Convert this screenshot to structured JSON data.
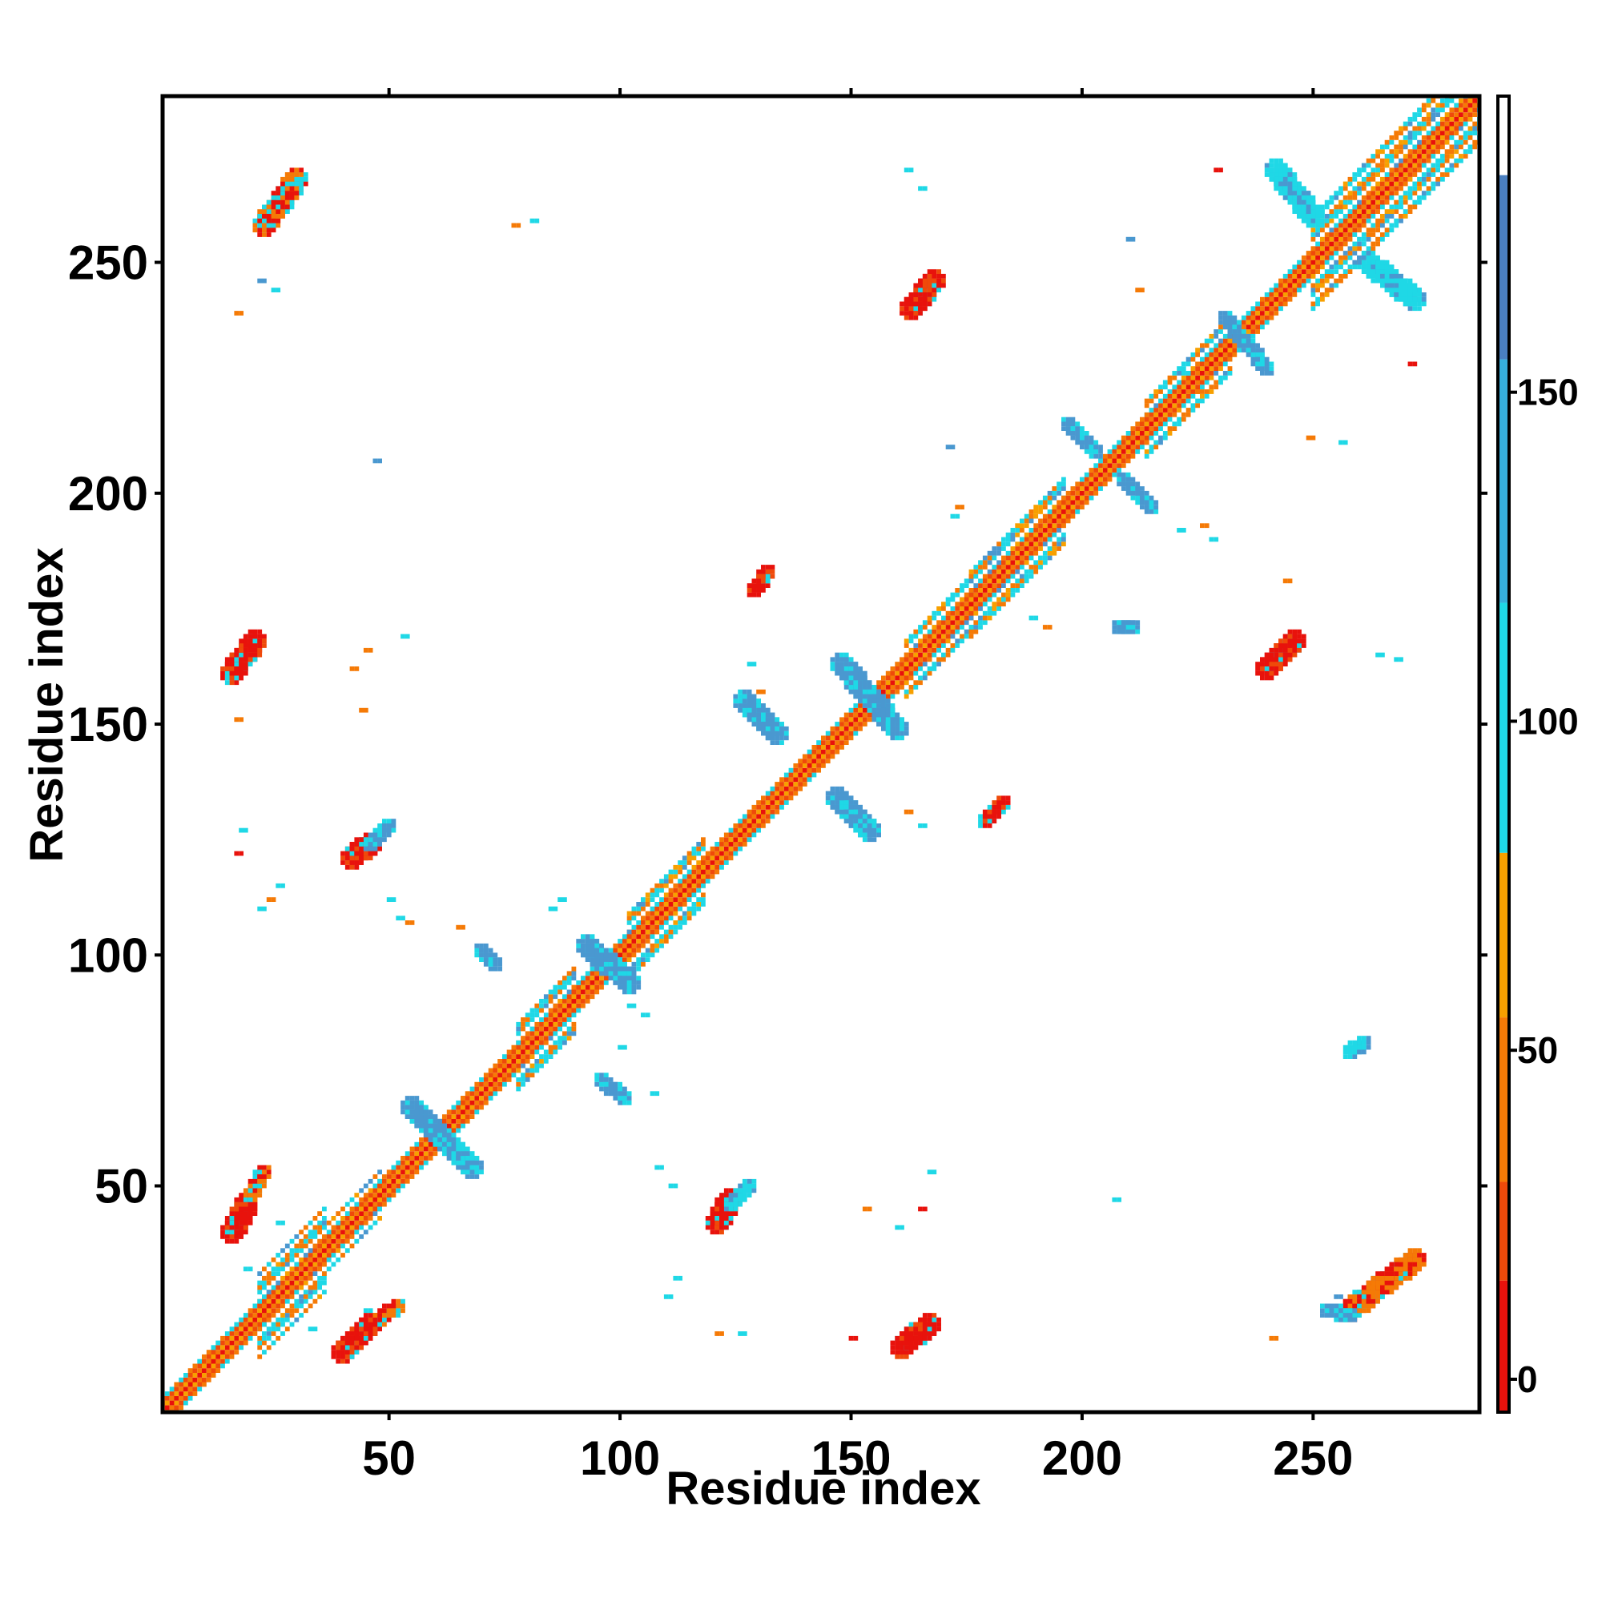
{
  "chart_data": {
    "type": "heatmap",
    "xlabel": "Residue index",
    "ylabel": "Residue index",
    "xlim": [
      1,
      286
    ],
    "ylim": [
      1,
      286
    ],
    "xticks": [
      50,
      100,
      150,
      200,
      250
    ],
    "yticks": [
      50,
      100,
      150,
      200,
      250
    ],
    "grid": false,
    "symmetric": true,
    "colorbar": {
      "range": [
        -5,
        195
      ],
      "ticks": [
        0,
        50,
        100,
        150
      ],
      "bands": [
        {
          "from": -5,
          "to": 15,
          "color": "#e8120c"
        },
        {
          "from": 15,
          "to": 30,
          "color": "#ef4a0a"
        },
        {
          "from": 30,
          "to": 55,
          "color": "#f57a06"
        },
        {
          "from": 55,
          "to": 80,
          "color": "#f7a000"
        },
        {
          "from": 80,
          "to": 118,
          "color": "#1fd8e6"
        },
        {
          "from": 118,
          "to": 155,
          "color": "#36aedc"
        },
        {
          "from": 155,
          "to": 183,
          "color": "#4a7fc0"
        },
        {
          "from": 183,
          "to": 195,
          "color": "#ffffff"
        }
      ]
    },
    "diagonal_segments": [
      {
        "from": 1,
        "to": 12,
        "class": "orange",
        "width": 3
      },
      {
        "from": 12,
        "to": 24,
        "class": "orange",
        "width": 4
      },
      {
        "from": 22,
        "to": 36,
        "class": "mixed",
        "width": 9
      },
      {
        "from": 36,
        "to": 48,
        "class": "mixed",
        "width": 5
      },
      {
        "from": 48,
        "to": 66,
        "class": "orange",
        "width": 3
      },
      {
        "from": 66,
        "to": 78,
        "class": "orange",
        "width": 4
      },
      {
        "from": 78,
        "to": 90,
        "class": "mixed",
        "width": 8
      },
      {
        "from": 90,
        "to": 102,
        "class": "orange",
        "width": 3
      },
      {
        "from": 102,
        "to": 118,
        "class": "mixed",
        "width": 8
      },
      {
        "from": 118,
        "to": 162,
        "class": "orange",
        "width": 3
      },
      {
        "from": 162,
        "to": 176,
        "class": "mixed",
        "width": 6
      },
      {
        "from": 176,
        "to": 196,
        "class": "mixed",
        "width": 8
      },
      {
        "from": 196,
        "to": 214,
        "class": "orange",
        "width": 3
      },
      {
        "from": 214,
        "to": 232,
        "class": "mixed",
        "width": 6
      },
      {
        "from": 232,
        "to": 250,
        "class": "orange",
        "width": 4
      },
      {
        "from": 250,
        "to": 286,
        "class": "mixed",
        "width": 10
      }
    ],
    "contact_patches": [
      {
        "x": [
          40,
          46
        ],
        "y": [
          14,
          20
        ],
        "class": "red",
        "half": 2
      },
      {
        "x": [
          48,
          52
        ],
        "y": [
          21,
          24
        ],
        "class": "orange",
        "half": 1
      },
      {
        "x": [
          161,
          167
        ],
        "y": [
          15,
          20
        ],
        "class": "red",
        "half": 2
      },
      {
        "x": [
          121,
          124
        ],
        "y": [
          42,
          47
        ],
        "class": "red",
        "half": 2
      },
      {
        "x": [
          124,
          128
        ],
        "y": [
          46,
          50
        ],
        "class": "cyan",
        "half": 1
      },
      {
        "x": [
          16,
          19
        ],
        "y": [
          40,
          46
        ],
        "class": "red",
        "half": 2
      },
      {
        "x": [
          20,
          23
        ],
        "y": [
          48,
          53
        ],
        "class": "orange",
        "half": 1
      },
      {
        "x": [
          16,
          21
        ],
        "y": [
          161,
          168
        ],
        "class": "red",
        "half": 2
      },
      {
        "x": [
          42,
          46
        ],
        "y": [
          121,
          124
        ],
        "class": "red",
        "half": 2
      },
      {
        "x": [
          46,
          50
        ],
        "y": [
          124,
          128
        ],
        "class": "blue",
        "half": 1
      },
      {
        "x": [
          129,
          132
        ],
        "y": [
          179,
          183
        ],
        "class": "red",
        "half": 1
      },
      {
        "x": [
          179,
          183
        ],
        "y": [
          129,
          133
        ],
        "class": "red",
        "half": 1
      },
      {
        "x": [
          163,
          168
        ],
        "y": [
          240,
          246
        ],
        "class": "red",
        "half": 2
      },
      {
        "x": [
          240,
          246
        ],
        "y": [
          162,
          168
        ],
        "class": "red",
        "half": 2
      },
      {
        "x": [
          23,
          30
        ],
        "y": [
          258,
          268
        ],
        "class": "orange",
        "half": 2
      },
      {
        "x": [
          258,
          272
        ],
        "y": [
          23,
          34
        ],
        "class": "orange",
        "half": 2
      },
      {
        "x": [
          55,
          68
        ],
        "y": [
          67,
          54
        ],
        "class": "blue",
        "half": 2
      },
      {
        "x": [
          148,
          160
        ],
        "y": [
          163,
          149
        ],
        "class": "blue",
        "half": 2
      },
      {
        "x": [
          127,
          134
        ],
        "y": [
          155,
          148
        ],
        "class": "blue",
        "half": 2
      },
      {
        "x": [
          147,
          154
        ],
        "y": [
          134,
          127
        ],
        "class": "blue",
        "half": 2
      },
      {
        "x": [
          93,
          102
        ],
        "y": [
          102,
          94
        ],
        "class": "blue",
        "half": 2
      },
      {
        "x": [
          96,
          101
        ],
        "y": [
          73,
          69
        ],
        "class": "blue",
        "half": 1
      },
      {
        "x": [
          70,
          73
        ],
        "y": [
          101,
          98
        ],
        "class": "blue",
        "half": 1
      },
      {
        "x": [
          197,
          203
        ],
        "y": [
          215,
          209
        ],
        "class": "blue",
        "half": 1
      },
      {
        "x": [
          209,
          215
        ],
        "y": [
          203,
          197
        ],
        "class": "blue",
        "half": 1
      },
      {
        "x": [
          231,
          240
        ],
        "y": [
          238,
          227
        ],
        "class": "blue",
        "half": 1
      },
      {
        "x": [
          242,
          250
        ],
        "y": [
          270,
          260
        ],
        "class": "cyan",
        "half": 2
      },
      {
        "x": [
          262,
          272
        ],
        "y": [
          250,
          242
        ],
        "class": "cyan",
        "half": 2
      },
      {
        "x": [
          253,
          258
        ],
        "y": [
          23,
          22
        ],
        "class": "blue",
        "half": 1
      },
      {
        "x": [
          208,
          211
        ],
        "y": [
          171,
          171
        ],
        "class": "blue",
        "half": 1
      },
      {
        "x": [
          258,
          261
        ],
        "y": [
          79,
          81
        ],
        "class": "cyan",
        "half": 1
      }
    ],
    "scatter_contacts": [
      {
        "x": 17,
        "y": 239,
        "class": "orange"
      },
      {
        "x": 22,
        "y": 246,
        "class": "blue"
      },
      {
        "x": 25,
        "y": 244,
        "class": "cyan"
      },
      {
        "x": 81,
        "y": 259,
        "class": "cyan"
      },
      {
        "x": 77,
        "y": 258,
        "class": "orange"
      },
      {
        "x": 162,
        "y": 270,
        "class": "cyan"
      },
      {
        "x": 165,
        "y": 266,
        "class": "cyan"
      },
      {
        "x": 47,
        "y": 207,
        "class": "blue"
      },
      {
        "x": 171,
        "y": 210,
        "class": "blue"
      },
      {
        "x": 173,
        "y": 197,
        "class": "orange"
      },
      {
        "x": 172,
        "y": 195,
        "class": "cyan"
      },
      {
        "x": 210,
        "y": 255,
        "class": "blue"
      },
      {
        "x": 212,
        "y": 244,
        "class": "orange"
      },
      {
        "x": 229,
        "y": 270,
        "class": "red"
      },
      {
        "x": 222,
        "y": 226,
        "class": "cyan"
      },
      {
        "x": 225,
        "y": 222,
        "class": "orange"
      },
      {
        "x": 271,
        "y": 228,
        "class": "red"
      },
      {
        "x": 249,
        "y": 212,
        "class": "orange"
      },
      {
        "x": 256,
        "y": 211,
        "class": "cyan"
      },
      {
        "x": 228,
        "y": 190,
        "class": "cyan"
      },
      {
        "x": 226,
        "y": 193,
        "class": "orange"
      },
      {
        "x": 221,
        "y": 192,
        "class": "cyan"
      },
      {
        "x": 244,
        "y": 181,
        "class": "orange"
      },
      {
        "x": 189,
        "y": 173,
        "class": "cyan"
      },
      {
        "x": 192,
        "y": 171,
        "class": "orange"
      },
      {
        "x": 264,
        "y": 165,
        "class": "cyan"
      },
      {
        "x": 268,
        "y": 164,
        "class": "cyan"
      },
      {
        "x": 53,
        "y": 169,
        "class": "cyan"
      },
      {
        "x": 45,
        "y": 166,
        "class": "orange"
      },
      {
        "x": 42,
        "y": 162,
        "class": "orange"
      },
      {
        "x": 44,
        "y": 153,
        "class": "orange"
      },
      {
        "x": 17,
        "y": 151,
        "class": "orange"
      },
      {
        "x": 128,
        "y": 163,
        "class": "cyan"
      },
      {
        "x": 130,
        "y": 157,
        "class": "orange"
      },
      {
        "x": 18,
        "y": 127,
        "class": "cyan"
      },
      {
        "x": 17,
        "y": 122,
        "class": "red"
      },
      {
        "x": 26,
        "y": 115,
        "class": "cyan"
      },
      {
        "x": 24,
        "y": 112,
        "class": "orange"
      },
      {
        "x": 22,
        "y": 110,
        "class": "cyan"
      },
      {
        "x": 50,
        "y": 112,
        "class": "cyan"
      },
      {
        "x": 54,
        "y": 107,
        "class": "orange"
      },
      {
        "x": 52,
        "y": 108,
        "class": "cyan"
      },
      {
        "x": 65,
        "y": 106,
        "class": "orange"
      },
      {
        "x": 87,
        "y": 112,
        "class": "cyan"
      },
      {
        "x": 85,
        "y": 110,
        "class": "cyan"
      },
      {
        "x": 162,
        "y": 131,
        "class": "orange"
      },
      {
        "x": 165,
        "y": 128,
        "class": "cyan"
      },
      {
        "x": 102,
        "y": 89,
        "class": "cyan"
      },
      {
        "x": 105,
        "y": 87,
        "class": "cyan"
      },
      {
        "x": 100,
        "y": 80,
        "class": "cyan"
      },
      {
        "x": 107,
        "y": 70,
        "class": "cyan"
      },
      {
        "x": 108,
        "y": 54,
        "class": "cyan"
      },
      {
        "x": 111,
        "y": 50,
        "class": "cyan"
      },
      {
        "x": 112,
        "y": 30,
        "class": "cyan"
      },
      {
        "x": 110,
        "y": 26,
        "class": "cyan"
      },
      {
        "x": 121,
        "y": 18,
        "class": "orange"
      },
      {
        "x": 126,
        "y": 18,
        "class": "cyan"
      },
      {
        "x": 150,
        "y": 17,
        "class": "red"
      },
      {
        "x": 153,
        "y": 45,
        "class": "orange"
      },
      {
        "x": 160,
        "y": 41,
        "class": "cyan"
      },
      {
        "x": 165,
        "y": 45,
        "class": "red"
      },
      {
        "x": 167,
        "y": 53,
        "class": "cyan"
      },
      {
        "x": 207,
        "y": 47,
        "class": "cyan"
      },
      {
        "x": 241,
        "y": 17,
        "class": "orange"
      },
      {
        "x": 255,
        "y": 26,
        "class": "blue"
      },
      {
        "x": 45,
        "y": 23,
        "class": "cyan"
      },
      {
        "x": 33,
        "y": 19,
        "class": "cyan"
      },
      {
        "x": 26,
        "y": 42,
        "class": "cyan"
      },
      {
        "x": 19,
        "y": 32,
        "class": "cyan"
      }
    ]
  }
}
